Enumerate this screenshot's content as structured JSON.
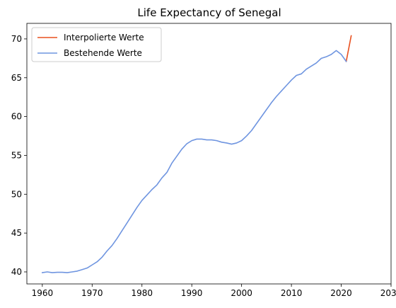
{
  "chart_data": {
    "type": "line",
    "title": "Life Expectancy of Senegal",
    "xlabel": "",
    "ylabel": "",
    "xlim": [
      1956.9,
      2030
    ],
    "ylim": [
      38.45,
      72.0
    ],
    "xticks": [
      1960,
      1970,
      1980,
      1990,
      2000,
      2010,
      2020,
      2030
    ],
    "yticks": [
      40,
      45,
      50,
      55,
      60,
      65,
      70
    ],
    "grid": false,
    "legend_position": "top-left",
    "series": [
      {
        "name": "Interpolierte Werte",
        "color": "#e8501f",
        "x": [
          2021,
          2022
        ],
        "y": [
          67.1,
          70.4
        ]
      },
      {
        "name": "Bestehende Werte",
        "color": "#6f95e0",
        "x": [
          1960,
          1961,
          1962,
          1963,
          1964,
          1965,
          1966,
          1967,
          1968,
          1969,
          1970,
          1971,
          1972,
          1973,
          1974,
          1975,
          1976,
          1977,
          1978,
          1979,
          1980,
          1981,
          1982,
          1983,
          1984,
          1985,
          1986,
          1987,
          1988,
          1989,
          1990,
          1991,
          1992,
          1993,
          1994,
          1995,
          1996,
          1997,
          1998,
          1999,
          2000,
          2001,
          2002,
          2003,
          2004,
          2005,
          2006,
          2007,
          2008,
          2009,
          2010,
          2011,
          2012,
          2013,
          2014,
          2015,
          2016,
          2017,
          2018,
          2019,
          2020,
          2021
        ],
        "y": [
          39.9,
          40.0,
          39.9,
          39.95,
          39.95,
          39.9,
          40.0,
          40.1,
          40.3,
          40.5,
          40.9,
          41.3,
          41.9,
          42.7,
          43.4,
          44.3,
          45.3,
          46.3,
          47.3,
          48.3,
          49.2,
          49.9,
          50.6,
          51.2,
          52.1,
          52.8,
          54.0,
          54.9,
          55.8,
          56.5,
          56.9,
          57.1,
          57.1,
          57.0,
          57.0,
          56.9,
          56.7,
          56.6,
          56.45,
          56.6,
          56.9,
          57.5,
          58.2,
          59.1,
          60.0,
          60.9,
          61.8,
          62.6,
          63.3,
          64.0,
          64.7,
          65.3,
          65.5,
          66.1,
          66.5,
          66.9,
          67.5,
          67.7,
          68.0,
          68.5,
          68.0,
          67.1
        ]
      }
    ]
  }
}
